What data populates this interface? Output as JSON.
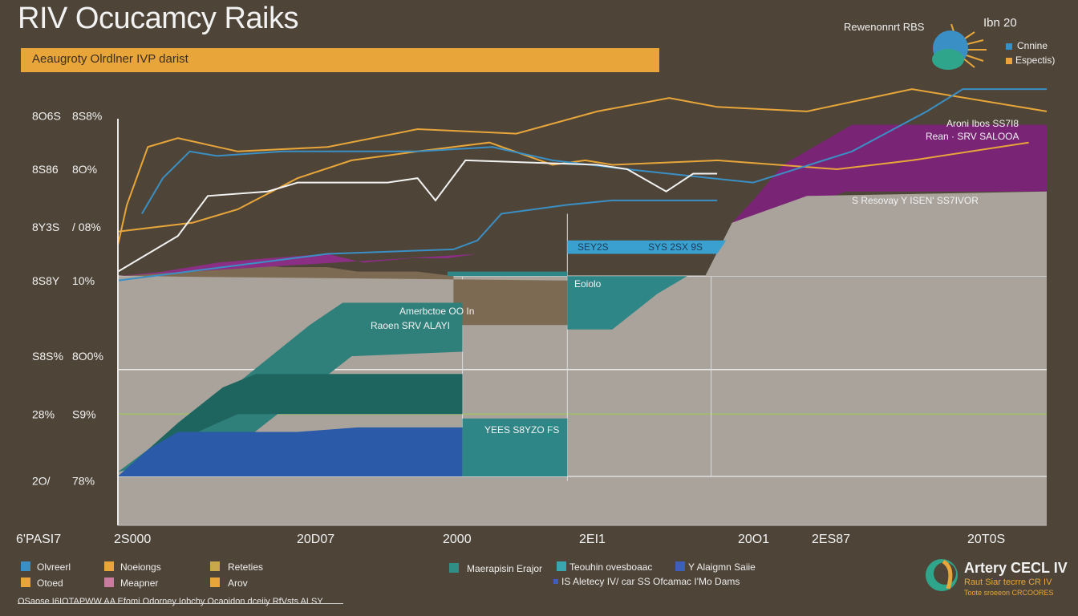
{
  "header": {
    "title": "RIV Ocucamcy Raiks",
    "subtitle": "Aeaugroty Olrdlner IVP darist"
  },
  "top_right": {
    "label_left": "Rewenonnrt RBS",
    "label_year": "Ibn 20",
    "legend": [
      {
        "label": "Cnnine",
        "color": "#3a8fc4"
      },
      {
        "label": "Espectis)",
        "color": "#e8a63a"
      }
    ]
  },
  "chart_data": {
    "type": "area",
    "title": "RIV Ocucamcy Raiks",
    "subtitle": "Aeaugroty Olrdlner IVP darist",
    "ylim": [
      0,
      100
    ],
    "y_tick_labels": [
      {
        "left": "8O6S",
        "right": "8S8%",
        "value": 92
      },
      {
        "left": "8S86",
        "right": "8O%",
        "value": 80
      },
      {
        "left": "8Y3S",
        "right": "/ 08%",
        "value": 67
      },
      {
        "left": "8S8Y",
        "right": "10%",
        "value": 55
      },
      {
        "left": "S8S%",
        "right": "8O0%",
        "value": 38
      },
      {
        "left": "28%",
        "right": "S9%",
        "value": 25
      },
      {
        "left": "2O/",
        "right": "78%",
        "value": 10
      }
    ],
    "x_tick_labels": [
      "6'PASI7",
      "2S000",
      "20D07",
      "2000",
      "2EI1",
      "20O1",
      "2ES87",
      "20T0S"
    ],
    "series": [
      {
        "color": "#e8a63a",
        "values": [
          [
            0,
            63
          ],
          [
            3,
            72
          ],
          [
            10,
            85
          ],
          [
            20,
            87
          ],
          [
            40,
            84
          ],
          [
            70,
            85
          ],
          [
            100,
            89
          ],
          [
            133,
            88
          ],
          [
            160,
            93
          ],
          [
            184,
            96
          ],
          [
            200,
            94
          ],
          [
            230,
            93
          ],
          [
            265,
            98
          ],
          [
            310,
            93
          ]
        ]
      },
      {
        "color": "#e8a63a",
        "values": [
          [
            0,
            66
          ],
          [
            25,
            68
          ],
          [
            40,
            71
          ],
          [
            60,
            78
          ],
          [
            78,
            82
          ],
          [
            100,
            84
          ],
          [
            124,
            86
          ],
          [
            145,
            81
          ],
          [
            156,
            82
          ],
          [
            165,
            81
          ],
          [
            200,
            82
          ],
          [
            240,
            80
          ],
          [
            265,
            82
          ],
          [
            304,
            86
          ]
        ]
      },
      {
        "color": "#3a8fc4",
        "values": [
          [
            8,
            70
          ],
          [
            15,
            78
          ],
          [
            24,
            84
          ],
          [
            33,
            83
          ],
          [
            55,
            84
          ],
          [
            100,
            84
          ],
          [
            125,
            85
          ],
          [
            145,
            82
          ],
          [
            170,
            80
          ],
          [
            212,
            77
          ],
          [
            245,
            84
          ],
          [
            270,
            93
          ],
          [
            282,
            98
          ],
          [
            310,
            98
          ]
        ]
      },
      {
        "color": "#3a8fc4",
        "values": [
          [
            0,
            55
          ],
          [
            35,
            58
          ],
          [
            70,
            61
          ],
          [
            112,
            62
          ],
          [
            120,
            64
          ],
          [
            128,
            70
          ],
          [
            150,
            72
          ],
          [
            165,
            73
          ],
          [
            200,
            73
          ]
        ]
      },
      {
        "color": "#f2f2f2",
        "values": [
          [
            0,
            57
          ],
          [
            20,
            65
          ],
          [
            30,
            74
          ],
          [
            50,
            75
          ],
          [
            60,
            77
          ],
          [
            90,
            77
          ],
          [
            100,
            78
          ],
          [
            106,
            73
          ],
          [
            116,
            82
          ],
          [
            160,
            81
          ],
          [
            170,
            80
          ],
          [
            183,
            75
          ],
          [
            192,
            79
          ],
          [
            200,
            79
          ]
        ]
      }
    ],
    "annotations": [
      {
        "line1": "Aroni Ibos SS7I8",
        "line2": "Rean · SRV SALOOA"
      },
      {
        "line1": "S Resovay Y ISEN' SS7IVOR"
      },
      {
        "line1": "SEY2S",
        "line2": "SYS 2SX 9S"
      },
      {
        "line1": "Eoiolo"
      },
      {
        "line1": "Amerbctoe OO In",
        "line2": "Raoen  SRV ALAYI"
      },
      {
        "line1": "YEES S8YZO FS"
      }
    ]
  },
  "legend": {
    "row1": [
      {
        "label": "Olvreerl",
        "color": "#3a8fc4"
      },
      {
        "label": "Noeiongs",
        "color": "#e8a63a"
      },
      {
        "label": "Reteties",
        "color": "#c9a84c"
      },
      {
        "label": "Maerapisin Erajor",
        "color": "#2f8f86"
      },
      {
        "label": "Teouhin ovesboaac",
        "color": "#3aa6b0"
      },
      {
        "label": "Y Alaigmn Saiie",
        "color": "#3e5fb8"
      }
    ],
    "row2": [
      {
        "label": "Otoed",
        "color": "#e8a63a"
      },
      {
        "label": "Meapner",
        "color": "#c97ba0"
      },
      {
        "label": "Arov",
        "color": "#e8a63a"
      },
      {
        "label": "IS Aletecy IV/ car SS Ofcamac I'Mo Dams",
        "color": "#3e5fb8"
      }
    ]
  },
  "brand": {
    "name": "Artery CECL IV",
    "tagline1": "Raut Siar tecrre CR IV",
    "tagline2": "Toote sroeeon CRCOORES"
  },
  "footer": {
    "text": "OSaose I6IOTAPWW AA Efomi Odorney Iobchy Ocaoidon dceiiy RfVsts ALSY"
  }
}
